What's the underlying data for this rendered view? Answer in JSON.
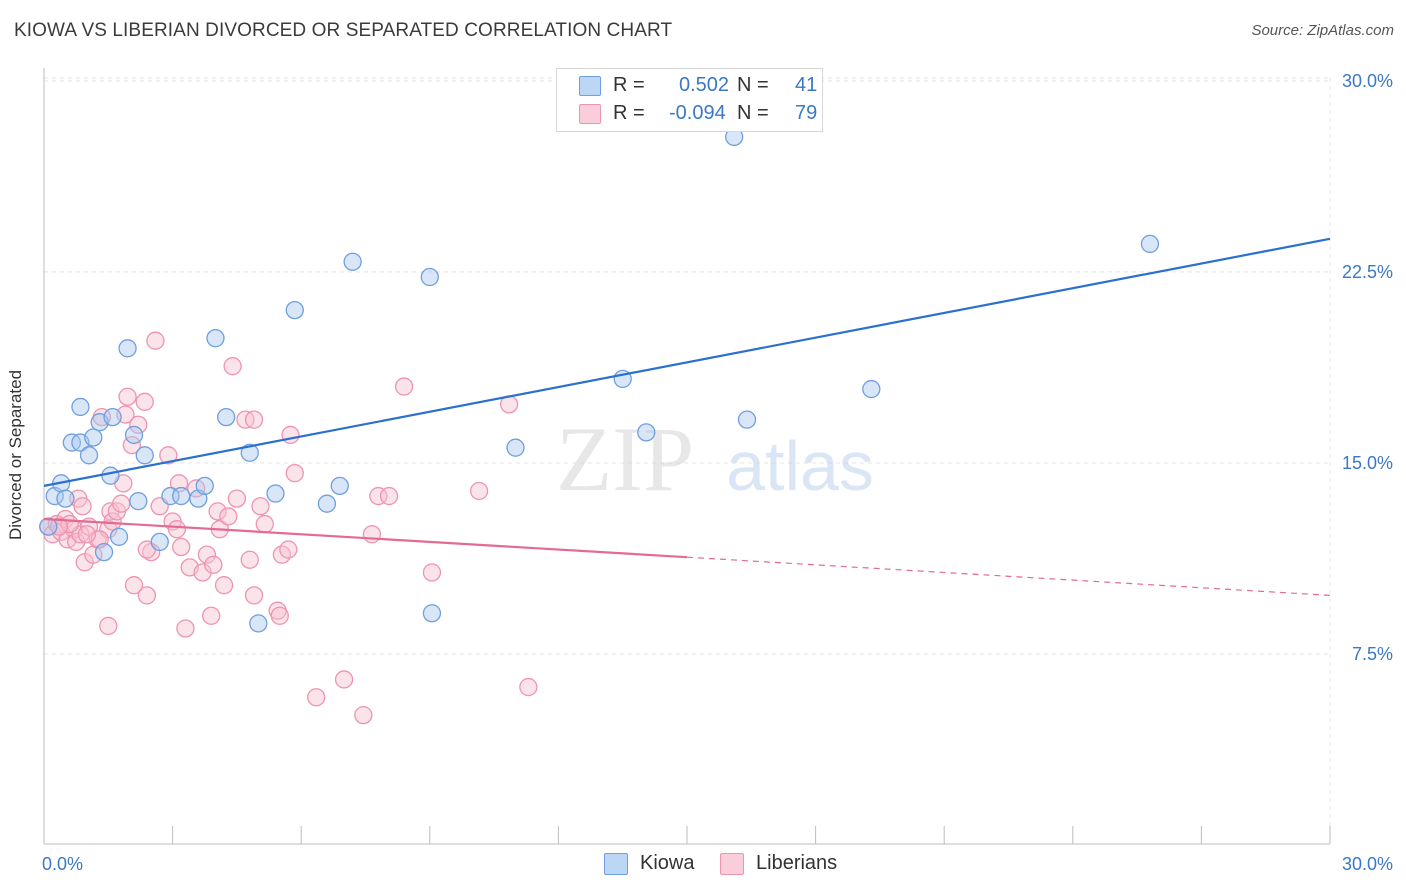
{
  "title": "KIOWA VS LIBERIAN DIVORCED OR SEPARATED CORRELATION CHART",
  "source": "Source: ZipAtlas.com",
  "watermark": {
    "zip": "ZIP",
    "atlas": "atlas"
  },
  "legend": {
    "kiowa": {
      "r_label": "R =",
      "r_value": "0.502",
      "n_label": "N =",
      "n_value": "41"
    },
    "liberians": {
      "r_label": "R =",
      "r_value": "-0.094",
      "n_label": "N =",
      "n_value": "79"
    }
  },
  "bottom_legend": {
    "kiowa": "Kiowa",
    "liberians": "Liberians"
  },
  "colors": {
    "kiowa_fill": "#a9c8f0",
    "kiowa_stroke": "#6f9fde",
    "kiowa_line": "#2b6fcf",
    "liberians_fill": "#f7c0d0",
    "liberians_stroke": "#ee94b0",
    "liberians_line": "#e36a94",
    "tick_text": "#3b78c5",
    "grid": "#e4e4e4"
  },
  "chart_data": {
    "type": "scatter",
    "title": "KIOWA VS LIBERIAN DIVORCED OR SEPARATED CORRELATION CHART",
    "xlabel": "",
    "ylabel": "Divorced or Separated",
    "xlim": [
      0,
      30
    ],
    "ylim": [
      0,
      31
    ],
    "x_tick_labels": [
      "0.0%",
      "30.0%"
    ],
    "y_ticks": [
      7.5,
      15.0,
      22.5,
      30.0
    ],
    "y_tick_labels": [
      "7.5%",
      "15.0%",
      "22.5%",
      "30.0%"
    ],
    "grid": true,
    "legend_position": "top-center",
    "series": [
      {
        "name": "Kiowa",
        "r": 0.502,
        "n": 41,
        "trend": {
          "x": [
            0,
            30
          ],
          "y": [
            14.1,
            23.8
          ],
          "dashed_from": null
        },
        "points": [
          [
            0.25,
            13.7
          ],
          [
            0.4,
            14.2
          ],
          [
            0.5,
            13.6
          ],
          [
            0.65,
            15.8
          ],
          [
            0.85,
            15.8
          ],
          [
            0.85,
            17.2
          ],
          [
            1.05,
            15.3
          ],
          [
            1.15,
            16.0
          ],
          [
            1.3,
            16.6
          ],
          [
            1.55,
            14.5
          ],
          [
            1.6,
            16.8
          ],
          [
            1.75,
            12.1
          ],
          [
            1.4,
            11.5
          ],
          [
            1.95,
            19.5
          ],
          [
            2.1,
            16.1
          ],
          [
            2.2,
            13.5
          ],
          [
            2.35,
            15.3
          ],
          [
            2.7,
            11.9
          ],
          [
            2.95,
            13.7
          ],
          [
            3.2,
            13.7
          ],
          [
            3.6,
            13.6
          ],
          [
            3.75,
            14.1
          ],
          [
            4.0,
            19.9
          ],
          [
            4.25,
            16.8
          ],
          [
            4.8,
            15.4
          ],
          [
            5.0,
            8.7
          ],
          [
            5.4,
            13.8
          ],
          [
            5.85,
            21.0
          ],
          [
            6.6,
            13.4
          ],
          [
            6.9,
            14.1
          ],
          [
            7.2,
            22.9
          ],
          [
            9.0,
            22.3
          ],
          [
            9.05,
            9.1
          ],
          [
            11.0,
            15.6
          ],
          [
            13.5,
            18.3
          ],
          [
            14.05,
            16.2
          ],
          [
            16.1,
            27.8
          ],
          [
            16.4,
            16.7
          ],
          [
            19.3,
            17.9
          ],
          [
            25.8,
            23.6
          ],
          [
            0.1,
            12.5
          ]
        ]
      },
      {
        "name": "Liberians",
        "r": -0.094,
        "n": 79,
        "trend": {
          "x": [
            0,
            30
          ],
          "y": [
            12.8,
            9.8
          ],
          "dashed_from": 15.0
        },
        "points": [
          [
            0.1,
            12.5
          ],
          [
            0.2,
            12.2
          ],
          [
            0.3,
            12.6
          ],
          [
            0.4,
            12.3
          ],
          [
            0.5,
            12.8
          ],
          [
            0.55,
            12.0
          ],
          [
            0.7,
            12.4
          ],
          [
            0.75,
            11.9
          ],
          [
            0.8,
            13.6
          ],
          [
            0.85,
            12.2
          ],
          [
            0.95,
            11.1
          ],
          [
            1.05,
            12.5
          ],
          [
            0.9,
            13.3
          ],
          [
            1.15,
            11.4
          ],
          [
            1.25,
            12.0
          ],
          [
            1.35,
            16.8
          ],
          [
            1.5,
            12.4
          ],
          [
            1.55,
            13.1
          ],
          [
            1.6,
            12.7
          ],
          [
            1.7,
            13.1
          ],
          [
            1.8,
            13.4
          ],
          [
            1.85,
            14.2
          ],
          [
            1.95,
            17.6
          ],
          [
            1.9,
            16.9
          ],
          [
            2.05,
            15.7
          ],
          [
            2.1,
            10.2
          ],
          [
            2.2,
            16.5
          ],
          [
            2.35,
            17.4
          ],
          [
            2.4,
            9.8
          ],
          [
            2.5,
            11.5
          ],
          [
            2.6,
            19.8
          ],
          [
            2.7,
            13.3
          ],
          [
            2.9,
            15.3
          ],
          [
            3.0,
            12.7
          ],
          [
            3.15,
            14.2
          ],
          [
            3.2,
            11.7
          ],
          [
            3.3,
            8.5
          ],
          [
            3.4,
            10.9
          ],
          [
            3.55,
            14.0
          ],
          [
            3.7,
            10.7
          ],
          [
            3.8,
            11.4
          ],
          [
            3.9,
            9.0
          ],
          [
            3.95,
            11.0
          ],
          [
            4.05,
            13.1
          ],
          [
            4.1,
            12.4
          ],
          [
            4.2,
            10.2
          ],
          [
            4.3,
            12.9
          ],
          [
            4.4,
            18.8
          ],
          [
            4.5,
            13.6
          ],
          [
            4.7,
            16.7
          ],
          [
            4.8,
            11.2
          ],
          [
            4.9,
            9.8
          ],
          [
            4.9,
            16.7
          ],
          [
            5.05,
            13.3
          ],
          [
            5.15,
            12.6
          ],
          [
            5.45,
            9.2
          ],
          [
            5.5,
            9.0
          ],
          [
            5.55,
            11.4
          ],
          [
            5.7,
            11.6
          ],
          [
            5.75,
            16.1
          ],
          [
            5.85,
            14.6
          ],
          [
            6.35,
            5.8
          ],
          [
            7.0,
            6.5
          ],
          [
            7.45,
            5.1
          ],
          [
            7.65,
            12.2
          ],
          [
            7.8,
            13.7
          ],
          [
            8.05,
            13.7
          ],
          [
            8.4,
            18.0
          ],
          [
            9.05,
            10.7
          ],
          [
            10.15,
            13.9
          ],
          [
            10.85,
            17.3
          ],
          [
            11.3,
            6.2
          ],
          [
            1.5,
            8.6
          ],
          [
            1.3,
            12.0
          ],
          [
            0.6,
            12.6
          ],
          [
            2.4,
            11.6
          ],
          [
            0.35,
            12.5
          ],
          [
            3.1,
            12.4
          ],
          [
            1.0,
            12.2
          ]
        ]
      }
    ]
  }
}
